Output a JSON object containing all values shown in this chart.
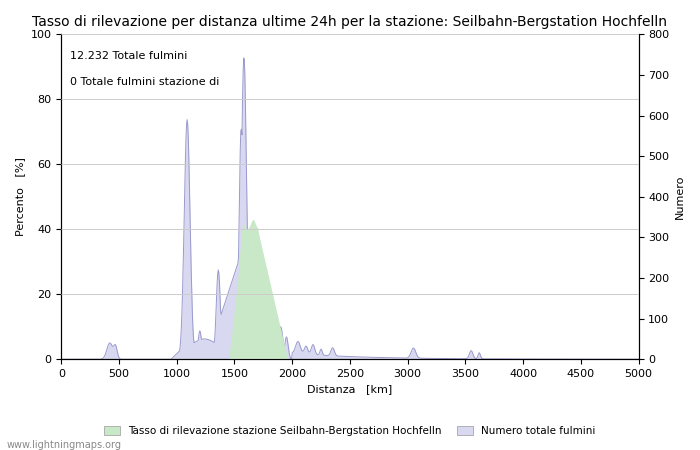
{
  "title": "Tasso di rilevazione per distanza ultime 24h per la stazione: Seilbahn-Bergstation Hochfelln",
  "xlabel": "Distanza   [km]",
  "ylabel_left": "Percento   [%]",
  "ylabel_right": "Numero",
  "annotation_line1": "12.232 Totale fulmini",
  "annotation_line2": "0 Totale fulmini stazione di",
  "xlim": [
    0,
    5000
  ],
  "ylim_left": [
    0,
    100
  ],
  "ylim_right": [
    0,
    800
  ],
  "xticks": [
    0,
    500,
    1000,
    1500,
    2000,
    2500,
    3000,
    3500,
    4000,
    4500,
    5000
  ],
  "yticks_left": [
    0,
    20,
    40,
    60,
    80,
    100
  ],
  "yticks_right": [
    0,
    100,
    200,
    300,
    400,
    500,
    600,
    700,
    800
  ],
  "legend_label_green": "Tasso di rilevazione stazione Seilbahn-Bergstation Hochfelln",
  "legend_label_blue": "Numero totale fulmini",
  "watermark": "www.lightningmaps.org",
  "line_color": "#9999cc",
  "fill_blue_color": "#d8d8f0",
  "fill_green_color": "#c8e8c8",
  "background_color": "#ffffff",
  "grid_color": "#cccccc",
  "title_fontsize": 10,
  "axis_fontsize": 8,
  "tick_fontsize": 8
}
